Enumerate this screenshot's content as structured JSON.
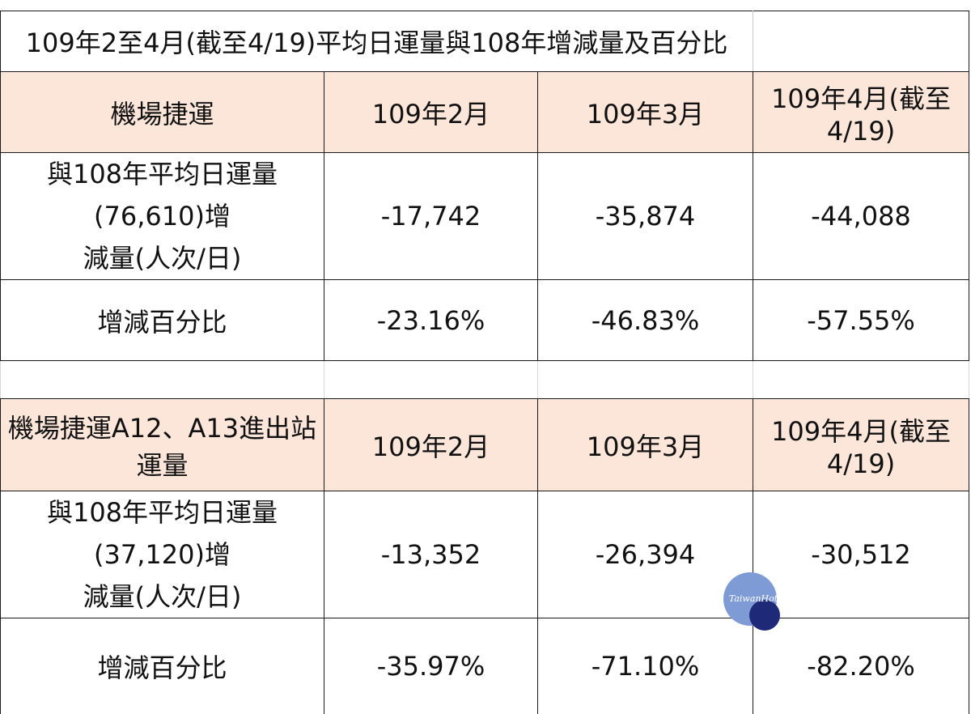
{
  "title": "109年2至4月(截至4/19)平均日運量與108年增減量及百分比",
  "section1": {
    "header": [
      "機場捷運",
      "109年2月",
      "109年3月",
      "109年4月(截至4/19)"
    ],
    "change_label": [
      "與108年平均日運量(76,610)增",
      "減量(人次/日)"
    ],
    "change_values": [
      "-17,742",
      "-35,874",
      "-44,088"
    ],
    "percent_label": "增減百分比",
    "percent_values": [
      "-23.16%",
      "-46.83%",
      "-57.55%"
    ]
  },
  "section2": {
    "header": [
      "機場捷運A12、A13進出站運量",
      "109年2月",
      "109年3月",
      "109年4月(截至4/19)"
    ],
    "change_label": [
      "與108年平均日運量(37,120)增",
      "減量(人次/日)"
    ],
    "change_values": [
      "-13,352",
      "-26,394",
      "-30,512"
    ],
    "percent_label": "增減百分比",
    "percent_values": [
      "-35.97%",
      "-71.10%",
      "-82.20%"
    ]
  },
  "watermark": {
    "text": "TaiwanHot",
    "colors": {
      "circle_light": "#7f9bd6",
      "circle_dark": "#1e2a78",
      "header_fill": "#fbe6d9",
      "negative_text": "#c0393b"
    }
  }
}
